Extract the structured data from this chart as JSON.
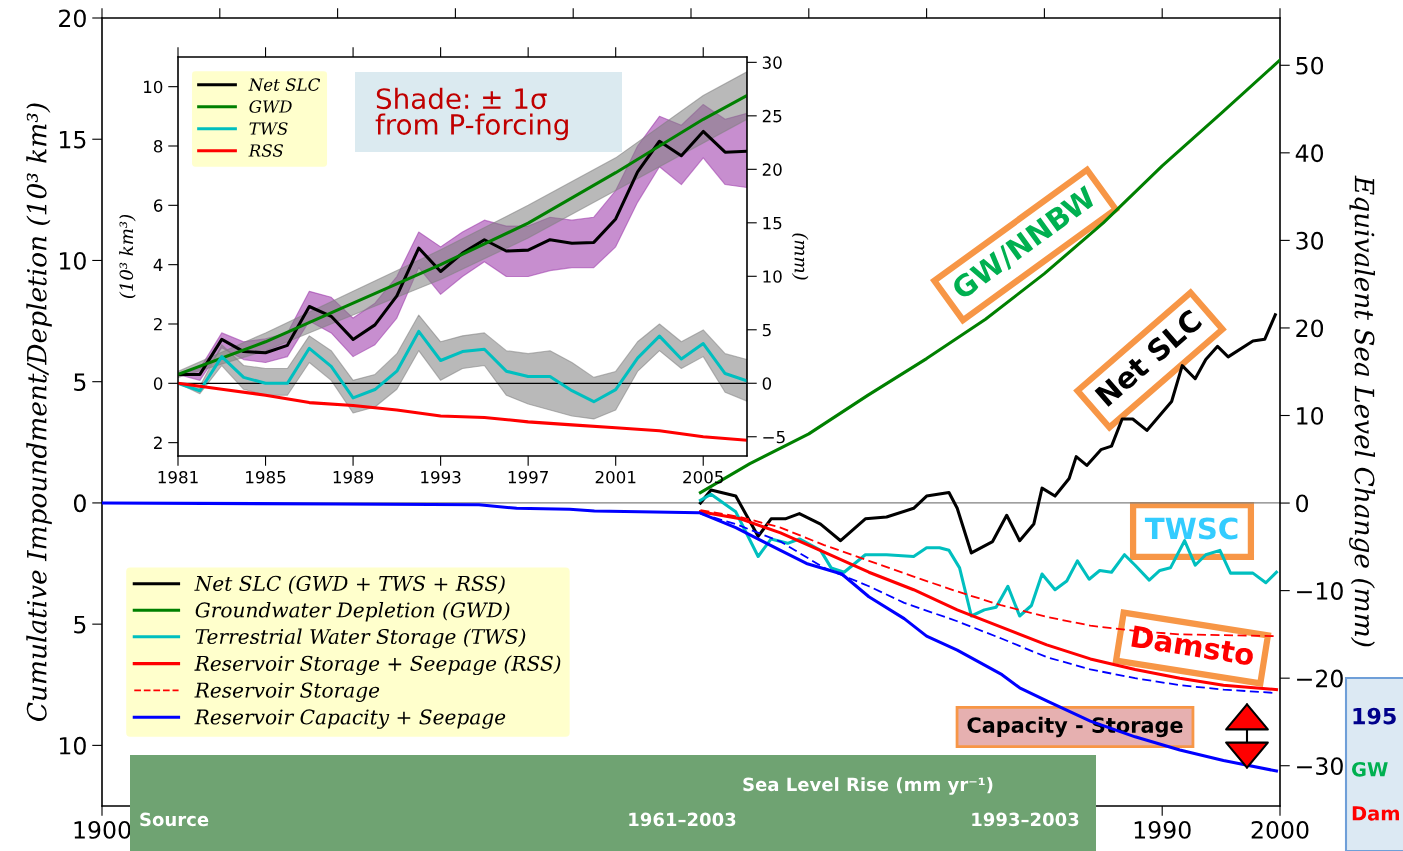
{
  "chart_data": [
    {
      "type": "line",
      "xlabel": null,
      "ylabel": "Cumulative Impoundment/Depletion (10³ km³)",
      "y2label": "Equivalent Sea Level Change (mm)",
      "xlim": [
        1900,
        2000
      ],
      "xticks": [
        {
          "value": 1900,
          "label": "1900"
        },
        {
          "value": 1910,
          "label": null
        },
        {
          "value": 1920,
          "label": null
        },
        {
          "value": 1930,
          "label": null
        },
        {
          "value": 1940,
          "label": null
        },
        {
          "value": 1950,
          "label": null
        },
        {
          "value": 1960,
          "label": null
        },
        {
          "value": 1970,
          "label": null
        },
        {
          "value": 1980,
          "label": null
        },
        1990,
        2000
      ],
      "ylim": [
        -12.5,
        20
      ],
      "yticks": [
        20,
        15,
        10,
        5,
        0,
        {
          "value": -5,
          "label": "5"
        },
        {
          "value": -10,
          "label": "10"
        }
      ],
      "y2lim": [
        -34.6,
        55.4
      ],
      "y2ticks": [
        50,
        40,
        30,
        20,
        10,
        0,
        {
          "value": -10,
          "label": "−10"
        },
        {
          "value": -20,
          "label": "−20"
        },
        {
          "value": -30,
          "label": "−30"
        }
      ],
      "grid": false,
      "legend": "bottom left",
      "marker": "none",
      "ref_lines": [
        {
          "axis": "y",
          "value": 0,
          "color": "#808080"
        }
      ],
      "series": [
        {
          "name": "Net SLC (GWD + TWS + RSS)",
          "color": "#000000",
          "axis": "y2",
          "x": [
            1950.8,
            1951.7,
            1953.8,
            1955.7,
            1956.8,
            1958.0,
            1959.2,
            1961.0,
            1962.7,
            1964.8,
            1966.6,
            1968.9,
            1970.0,
            1971.9,
            1972.6,
            1973.8,
            1975.6,
            1976.8,
            1977.9,
            1979.1,
            1979.8,
            1980.9,
            1982.1,
            1982.7,
            1983.6,
            1984.8,
            1985.7,
            1986.6,
            1987.5,
            1988.7,
            1990.8,
            1991.7,
            1992.8,
            1993.7,
            1994.7,
            1995.6,
            1997.7,
            1998.7,
            1999.6
          ],
          "values": [
            0,
            1.5,
            0.8,
            -3.8,
            -1.8,
            -1.8,
            -1.2,
            -2.4,
            -4.3,
            -1.8,
            -1.6,
            -0.6,
            0.8,
            1.2,
            -0.6,
            -5.7,
            -4.4,
            -1.4,
            -4.3,
            -2.4,
            1.7,
            0.8,
            2.8,
            5.3,
            4.3,
            6.1,
            6.5,
            9.6,
            9.6,
            8.3,
            11.6,
            15.7,
            14.2,
            16.4,
            17.9,
            16.7,
            18.5,
            18.7,
            21.5
          ]
        },
        {
          "name": "Groundwater Depletion (GWD)",
          "color": "#008000",
          "axis": "y2",
          "x": [
            1950.8,
            1955,
            1960,
            1965,
            1970,
            1975,
            1980,
            1985,
            1990,
            1995,
            2000
          ],
          "values": [
            1.2,
            4.5,
            7.9,
            12.3,
            16.5,
            21,
            26.2,
            32,
            38.5,
            44.5,
            50.6
          ]
        },
        {
          "name": "Terrestrial Water Storage (TWS)",
          "color": "#00bfbf",
          "axis": "y2",
          "x": [
            1950.8,
            1951.7,
            1953.8,
            1955.7,
            1956.8,
            1958.2,
            1959.2,
            1961.0,
            1961.9,
            1963.0,
            1964.8,
            1966.6,
            1968.9,
            1970.0,
            1971.1,
            1971.9,
            1972.8,
            1973.8,
            1974.9,
            1975.9,
            1976.9,
            1977.9,
            1978.9,
            1979.8,
            1980.9,
            1981.9,
            1982.8,
            1983.8,
            1984.7,
            1985.7,
            1986.8,
            1987.7,
            1988.9,
            1989.8,
            1990.7,
            1991.9,
            1992.8,
            1993.7,
            1994.9,
            1995.8,
            1997.7,
            1998.8,
            1999.7
          ],
          "values": [
            0.3,
            1.0,
            -1.0,
            -6.1,
            -4.1,
            -4.6,
            -4.1,
            -5.4,
            -7.4,
            -7.9,
            -5.9,
            -5.9,
            -6.1,
            -5.1,
            -5.1,
            -5.4,
            -7.4,
            -12.9,
            -12.2,
            -11.9,
            -9.5,
            -12.9,
            -11.7,
            -8.1,
            -9.9,
            -8.9,
            -6.6,
            -8.7,
            -7.7,
            -7.9,
            -5.9,
            -7.1,
            -8.8,
            -7.7,
            -7.4,
            -4.3,
            -7.1,
            -5.9,
            -5.4,
            -8.0,
            -8.0,
            -9.1,
            -7.9
          ]
        },
        {
          "name": "Reservoir Storage + Seepage (RSS)",
          "color": "#ff0000",
          "axis": "y2",
          "x": [
            1950.8,
            1954.2,
            1957.6,
            1961.3,
            1965.1,
            1968.9,
            1972.6,
            1976.4,
            1980.2,
            1983.9,
            1987.7,
            1991.5,
            1995.2,
            1999.7
          ],
          "values": [
            -1.0,
            -1.8,
            -3.4,
            -5.6,
            -7.9,
            -9.9,
            -12.2,
            -14.2,
            -16.2,
            -17.8,
            -19.0,
            -20.0,
            -20.8,
            -21.3
          ]
        },
        {
          "name": "Reservoir Storage",
          "color": "#ff0000",
          "axis": "y2",
          "line_style": "dashed",
          "x": [
            1950.8,
            1954.2,
            1957.6,
            1961.3,
            1965.1,
            1968.9,
            1972.6,
            1976.4,
            1980.2,
            1983.9,
            1987.7,
            1991.5,
            1999.7
          ],
          "values": [
            -0.8,
            -1.6,
            -2.8,
            -4.8,
            -6.6,
            -8.4,
            -10.1,
            -11.7,
            -13.0,
            -14.0,
            -14.6,
            -15.0,
            -15.2
          ]
        },
        {
          "name": "Reservoir Capacity + Seepage",
          "color": "#0000ff",
          "axis": "y2",
          "x": [
            1900,
            1919.8,
            1932,
            1935.2,
            1939.7,
            1941.8,
            1950.7,
            1953.8,
            1957.6,
            1959.8,
            1962.8,
            1965.1,
            1968.1,
            1970.0,
            1972.6,
            1976.4,
            1977.9,
            1980.2,
            1983.9,
            1987.7,
            1991.5,
            1995.2,
            1999.7
          ],
          "values": [
            0,
            -0.1,
            -0.2,
            -0.6,
            -0.7,
            -0.9,
            -1.1,
            -2.8,
            -5.4,
            -6.9,
            -8.1,
            -10.7,
            -13.2,
            -15.2,
            -16.8,
            -19.6,
            -21.1,
            -22.6,
            -24.9,
            -26.7,
            -28.2,
            -29.4,
            -30.6
          ]
        },
        {
          "color": "#0000ff",
          "axis": "y2",
          "line_style": "dashed",
          "x": [
            1950.8,
            1953.8,
            1957.6,
            1961.3,
            1965.1,
            1968.1,
            1972.6,
            1976.4,
            1980.2,
            1983.9,
            1987.7,
            1991.5,
            1995.2,
            1999.7
          ],
          "values": [
            -1.2,
            -2.4,
            -4.4,
            -7.4,
            -9.5,
            -11.4,
            -13.5,
            -15.5,
            -17.6,
            -19.0,
            -20.0,
            -20.8,
            -21.3,
            -21.7
          ]
        }
      ],
      "annotations": [
        "GW/NNBW",
        "Net SLC",
        "TWSC",
        "Damsto",
        "Capacity - Storage",
        "Sea Level Rise (mm yr⁻¹)",
        "Source",
        "1961–2003",
        "1993–2003",
        "195",
        "GW",
        "Dam"
      ]
    },
    {
      "type": "line",
      "ylabel": "(10³ km³)",
      "y2label": "(mm)",
      "xlim": [
        1981,
        2007
      ],
      "xticks": [
        1981,
        1985,
        1989,
        1993,
        1997,
        2001,
        2005
      ],
      "ylim": [
        -2.45,
        11
      ],
      "yticks": [
        10,
        8,
        6,
        4,
        2,
        0,
        {
          "value": -2,
          "label": "2"
        }
      ],
      "y2lim": [
        -6.8,
        30.5
      ],
      "y2ticks": [
        30,
        25,
        20,
        15,
        10,
        5,
        0,
        {
          "value": -5,
          "label": "−5"
        }
      ],
      "grid": false,
      "legend": "top left",
      "marker": "none",
      "ref_lines": [
        {
          "axis": "y",
          "value": 0,
          "color": "#000000"
        }
      ],
      "series": [
        {
          "name": "Net SLC",
          "color": "#000000",
          "x": [
            1981,
            1982,
            1983,
            1984,
            1985,
            1986,
            1987,
            1988,
            1989,
            1990,
            1991,
            1992,
            1993,
            1994,
            1995,
            1996,
            1997,
            1998,
            1999,
            2000,
            2001,
            2002,
            2003,
            2004,
            2005,
            2006,
            2007
          ],
          "values": [
            0.3,
            0.3,
            1.48,
            1.07,
            1.03,
            1.28,
            2.59,
            2.26,
            1.48,
            1.97,
            2.95,
            4.56,
            3.77,
            4.39,
            4.84,
            4.46,
            4.49,
            4.84,
            4.72,
            4.75,
            5.54,
            7.13,
            8.16,
            7.67,
            8.49,
            7.79,
            7.82
          ],
          "upper": [
            0.3,
            0.5,
            1.7,
            1.4,
            1.5,
            1.7,
            3.1,
            2.9,
            2.2,
            2.7,
            3.6,
            5.1,
            4.6,
            5.1,
            5.5,
            5.3,
            5.3,
            5.6,
            5.5,
            5.6,
            6.5,
            8.0,
            9.0,
            8.7,
            9.4,
            8.9,
            9.1
          ],
          "lower": [
            0.3,
            0.1,
            1.2,
            0.8,
            0.7,
            0.9,
            2.1,
            1.7,
            0.9,
            1.3,
            2.2,
            3.9,
            3.0,
            3.6,
            4.1,
            3.6,
            3.6,
            3.8,
            3.9,
            3.9,
            4.6,
            6.1,
            7.3,
            6.7,
            7.6,
            6.7,
            6.6
          ]
        },
        {
          "name": "GWD",
          "color": "#008000",
          "x": [
            1981,
            1985,
            1989,
            1993,
            1997,
            2001,
            2005,
            2007
          ],
          "values": [
            0.3,
            1.4,
            2.7,
            4.0,
            5.4,
            7.1,
            8.9,
            9.7
          ],
          "upper": [
            0.4,
            1.7,
            3.1,
            4.5,
            6.0,
            7.6,
            9.7,
            10.5
          ],
          "lower": [
            0.2,
            1.1,
            2.3,
            3.5,
            4.9,
            6.5,
            8.1,
            8.9
          ]
        },
        {
          "name": "TWS",
          "color": "#00bfbf",
          "x": [
            1981,
            1982,
            1983,
            1984,
            1985,
            1986,
            1987,
            1988,
            1989,
            1990,
            1991,
            1992,
            1993,
            1994,
            1995,
            1996,
            1997,
            1998,
            1999,
            2000,
            2001,
            2002,
            2003,
            2004,
            2005,
            2006,
            2007
          ],
          "values": [
            0,
            -0.25,
            0.9,
            0.2,
            0,
            0,
            1.18,
            0.57,
            -0.49,
            -0.21,
            0.41,
            1.75,
            0.77,
            1.07,
            1.15,
            0.41,
            0.23,
            0.23,
            -0.25,
            -0.62,
            -0.21,
            0.85,
            1.59,
            0.82,
            1.34,
            0.33,
            0.08
          ],
          "upper": [
            0,
            -0.1,
            1.3,
            0.6,
            0.5,
            0.5,
            1.6,
            1.1,
            0.1,
            0.3,
            1.0,
            2.3,
            1.4,
            1.6,
            1.7,
            1.1,
            1.0,
            1.1,
            0.7,
            0.2,
            0.4,
            1.4,
            2.0,
            1.4,
            1.8,
            1.0,
            0.8
          ],
          "lower": [
            0,
            -0.35,
            0.6,
            -0.2,
            -0.4,
            -0.4,
            0.7,
            0.1,
            -1.0,
            -0.8,
            -0.2,
            1.1,
            0.1,
            0.5,
            0.6,
            -0.4,
            -0.7,
            -0.9,
            -1.1,
            -1.2,
            -0.9,
            0.4,
            1.1,
            0.5,
            0.9,
            -0.3,
            -0.6
          ]
        },
        {
          "name": "RSS",
          "color": "#ff0000",
          "x": [
            1981,
            1983,
            1985,
            1987,
            1989,
            1991,
            1993,
            1995,
            1997,
            1999,
            2001,
            2003,
            2005,
            2007
          ],
          "values": [
            0,
            -0.2,
            -0.4,
            -0.65,
            -0.75,
            -0.9,
            -1.1,
            -1.15,
            -1.3,
            -1.4,
            -1.5,
            -1.6,
            -1.8,
            -1.92
          ]
        }
      ],
      "annotations": [
        "Shade: ± 1σ\nfrom P-forcing"
      ]
    }
  ]
}
